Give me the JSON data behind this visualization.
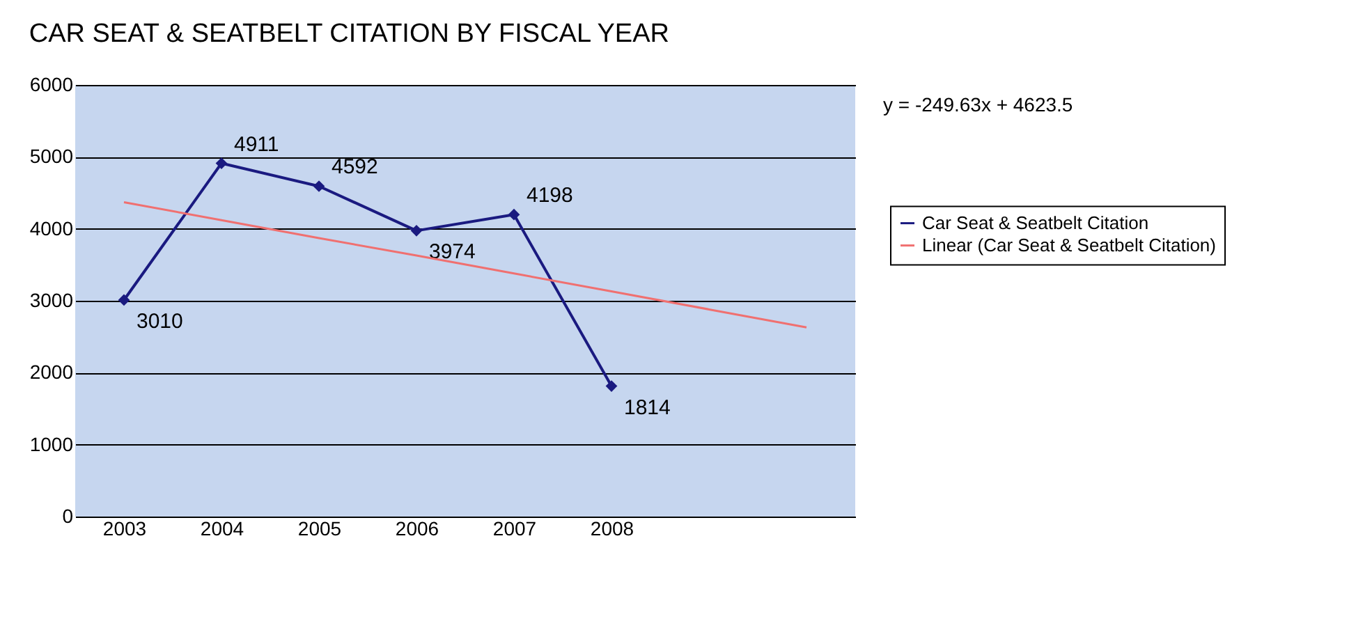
{
  "chart_data": {
    "type": "line",
    "title": "CAR SEAT & SEATBELT CITATION BY FISCAL YEAR",
    "categories": [
      "2003",
      "2004",
      "2005",
      "2006",
      "2007",
      "2008",
      null,
      null
    ],
    "series": [
      {
        "name": "Car Seat & Seatbelt Citation",
        "color": "#1a1a80",
        "values": [
          3010,
          4911,
          4592,
          3974,
          4198,
          1814,
          null,
          null
        ],
        "marker": "diamond",
        "data_labels": true
      },
      {
        "name": "Linear (Car Seat & Seatbelt Citation)",
        "type": "line",
        "color": "#f07070",
        "values": [
          4370,
          4120,
          3870,
          3630,
          3380,
          3130,
          2880,
          2630
        ],
        "marker": "none"
      }
    ],
    "ylim": [
      0,
      6000
    ],
    "yticks": [
      0,
      1000,
      2000,
      3000,
      4000,
      5000,
      6000
    ],
    "grid": "y",
    "legend": "right",
    "annotations": [
      "y = -249.63x + 4623.5"
    ]
  }
}
